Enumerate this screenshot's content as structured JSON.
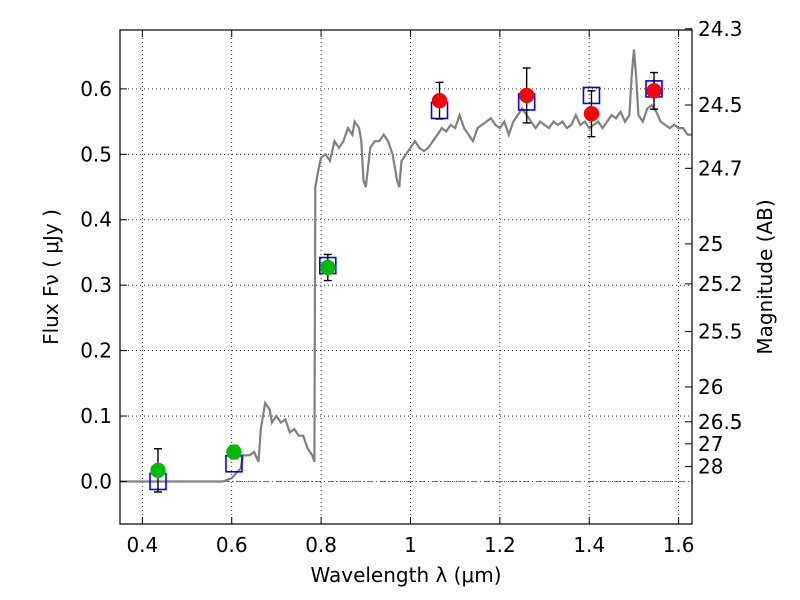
{
  "chart_data": {
    "type": "scatter",
    "xlabel": "Wavelength  λ (μm)",
    "ylabel": "Flux  Fν  ( μJy )",
    "ylabel_right": "Magnitude (AB)",
    "xlim": [
      0.35,
      1.63
    ],
    "ylim": [
      -0.065,
      0.69
    ],
    "grid": true,
    "x_ticks": [
      0.4,
      0.6,
      0.8,
      1.0,
      1.2,
      1.4,
      1.6
    ],
    "x_tick_labels": [
      "0.4",
      "0.6",
      "0.8",
      "1",
      "1.2",
      "1.4",
      "1.6"
    ],
    "y_ticks": [
      0.0,
      0.1,
      0.2,
      0.3,
      0.4,
      0.5,
      0.6
    ],
    "y_tick_labels": [
      "0.0",
      "0.1",
      "0.2",
      "0.3",
      "0.4",
      "0.5",
      "0.6"
    ],
    "mag_ticks": [
      {
        "flux": 0.6918,
        "label": "24.3"
      },
      {
        "flux": 0.5754,
        "label": "24.5"
      },
      {
        "flux": 0.4786,
        "label": "24.7"
      },
      {
        "flux": 0.3631,
        "label": "25"
      },
      {
        "flux": 0.302,
        "label": "25.2"
      },
      {
        "flux": 0.2291,
        "label": "25.5"
      },
      {
        "flux": 0.1445,
        "label": "26"
      },
      {
        "flux": 0.0912,
        "label": "26.5"
      },
      {
        "flux": 0.0575,
        "label": "27"
      },
      {
        "flux": 0.0229,
        "label": "28"
      }
    ],
    "series": [
      {
        "kind": "spectrum",
        "color": "#808080",
        "points": [
          [
            0.35,
            0.0
          ],
          [
            0.58,
            0.0
          ],
          [
            0.6,
            0.005
          ],
          [
            0.62,
            0.02
          ],
          [
            0.625,
            0.04
          ],
          [
            0.64,
            0.04
          ],
          [
            0.65,
            0.045
          ],
          [
            0.66,
            0.03
          ],
          [
            0.665,
            0.08
          ],
          [
            0.675,
            0.12
          ],
          [
            0.685,
            0.11
          ],
          [
            0.69,
            0.09
          ],
          [
            0.7,
            0.1
          ],
          [
            0.71,
            0.09
          ],
          [
            0.72,
            0.095
          ],
          [
            0.73,
            0.075
          ],
          [
            0.74,
            0.08
          ],
          [
            0.75,
            0.07
          ],
          [
            0.76,
            0.07
          ],
          [
            0.77,
            0.05
          ],
          [
            0.78,
            0.04
          ],
          [
            0.785,
            0.03
          ],
          [
            0.787,
            0.45
          ],
          [
            0.795,
            0.48
          ],
          [
            0.8,
            0.495
          ],
          [
            0.81,
            0.5
          ],
          [
            0.82,
            0.49
          ],
          [
            0.83,
            0.52
          ],
          [
            0.84,
            0.51
          ],
          [
            0.85,
            0.52
          ],
          [
            0.86,
            0.54
          ],
          [
            0.87,
            0.53
          ],
          [
            0.875,
            0.55
          ],
          [
            0.885,
            0.54
          ],
          [
            0.89,
            0.52
          ],
          [
            0.895,
            0.46
          ],
          [
            0.9,
            0.45
          ],
          [
            0.91,
            0.51
          ],
          [
            0.92,
            0.52
          ],
          [
            0.93,
            0.52
          ],
          [
            0.94,
            0.53
          ],
          [
            0.95,
            0.52
          ],
          [
            0.96,
            0.5
          ],
          [
            0.97,
            0.46
          ],
          [
            0.975,
            0.45
          ],
          [
            0.98,
            0.49
          ],
          [
            0.99,
            0.5
          ],
          [
            1.0,
            0.51
          ],
          [
            1.01,
            0.52
          ],
          [
            1.02,
            0.51
          ],
          [
            1.03,
            0.505
          ],
          [
            1.04,
            0.51
          ],
          [
            1.05,
            0.52
          ],
          [
            1.06,
            0.53
          ],
          [
            1.07,
            0.54
          ],
          [
            1.08,
            0.535
          ],
          [
            1.09,
            0.545
          ],
          [
            1.1,
            0.54
          ],
          [
            1.11,
            0.56
          ],
          [
            1.12,
            0.54
          ],
          [
            1.13,
            0.53
          ],
          [
            1.14,
            0.52
          ],
          [
            1.15,
            0.54
          ],
          [
            1.16,
            0.545
          ],
          [
            1.17,
            0.55
          ],
          [
            1.18,
            0.555
          ],
          [
            1.19,
            0.545
          ],
          [
            1.2,
            0.54
          ],
          [
            1.21,
            0.55
          ],
          [
            1.22,
            0.53
          ],
          [
            1.23,
            0.55
          ],
          [
            1.24,
            0.56
          ],
          [
            1.25,
            0.57
          ],
          [
            1.26,
            0.56
          ],
          [
            1.27,
            0.55
          ],
          [
            1.28,
            0.54
          ],
          [
            1.29,
            0.55
          ],
          [
            1.3,
            0.545
          ],
          [
            1.31,
            0.54
          ],
          [
            1.32,
            0.55
          ],
          [
            1.33,
            0.545
          ],
          [
            1.34,
            0.55
          ],
          [
            1.35,
            0.54
          ],
          [
            1.36,
            0.545
          ],
          [
            1.37,
            0.56
          ],
          [
            1.38,
            0.545
          ],
          [
            1.39,
            0.55
          ],
          [
            1.4,
            0.54
          ],
          [
            1.41,
            0.545
          ],
          [
            1.42,
            0.55
          ],
          [
            1.43,
            0.54
          ],
          [
            1.44,
            0.55
          ],
          [
            1.45,
            0.56
          ],
          [
            1.46,
            0.555
          ],
          [
            1.47,
            0.565
          ],
          [
            1.48,
            0.55
          ],
          [
            1.49,
            0.56
          ],
          [
            1.495,
            0.62
          ],
          [
            1.5,
            0.66
          ],
          [
            1.505,
            0.62
          ],
          [
            1.51,
            0.56
          ],
          [
            1.52,
            0.55
          ],
          [
            1.53,
            0.57
          ],
          [
            1.54,
            0.575
          ],
          [
            1.55,
            0.565
          ],
          [
            1.56,
            0.55
          ],
          [
            1.57,
            0.545
          ],
          [
            1.58,
            0.54
          ],
          [
            1.59,
            0.545
          ],
          [
            1.6,
            0.54
          ],
          [
            1.61,
            0.54
          ],
          [
            1.62,
            0.53
          ],
          [
            1.63,
            0.53
          ]
        ]
      },
      {
        "kind": "model_boxes",
        "color": "#0000ff",
        "points": [
          [
            0.435,
            0.0
          ],
          [
            0.605,
            0.027
          ],
          [
            0.815,
            0.33
          ],
          [
            1.065,
            0.567
          ],
          [
            1.26,
            0.58
          ],
          [
            1.405,
            0.59
          ],
          [
            1.545,
            0.6
          ]
        ]
      },
      {
        "kind": "observed_points",
        "points": [
          {
            "x": 0.435,
            "y": 0.017,
            "err": 0.033,
            "color": "#00bb00"
          },
          {
            "x": 0.605,
            "y": 0.045,
            "err": 0.01,
            "color": "#00bb00"
          },
          {
            "x": 0.815,
            "y": 0.327,
            "err": 0.02,
            "color": "#00bb00"
          },
          {
            "x": 1.065,
            "y": 0.582,
            "err": 0.028,
            "color": "#ff0000"
          },
          {
            "x": 1.26,
            "y": 0.59,
            "err": 0.042,
            "color": "#ff0000"
          },
          {
            "x": 1.405,
            "y": 0.562,
            "err": 0.035,
            "color": "#ff0000"
          },
          {
            "x": 1.545,
            "y": 0.597,
            "err": 0.028,
            "color": "#ff0000"
          }
        ]
      }
    ]
  }
}
